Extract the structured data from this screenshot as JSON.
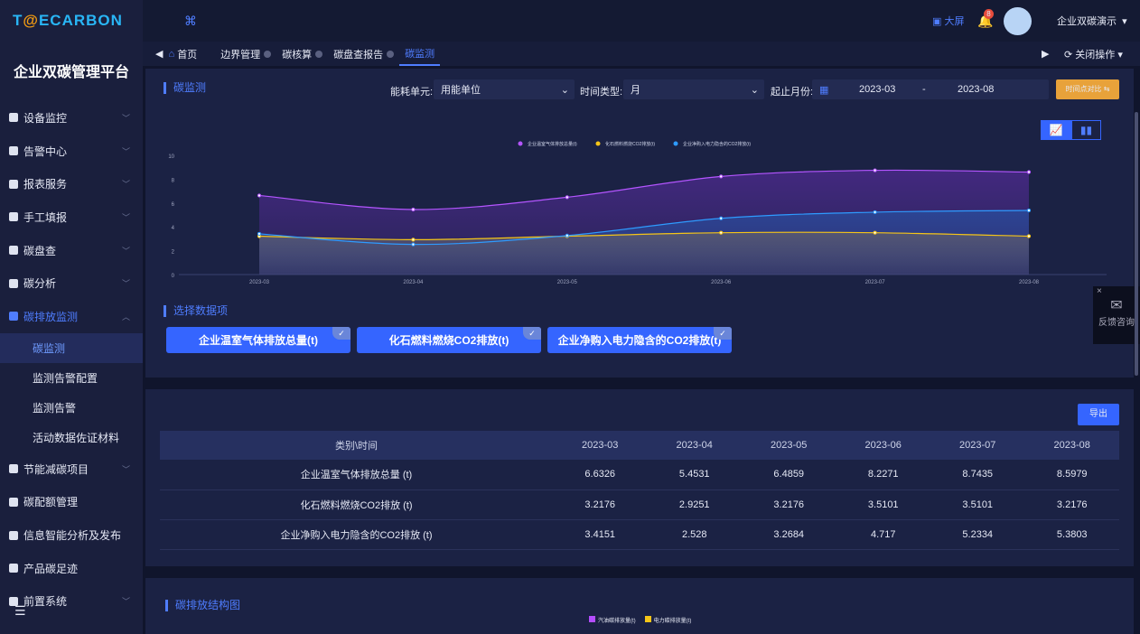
{
  "app": {
    "logo": "T@ECARBON",
    "platform_title": "企业双碳管理平台"
  },
  "sidebar": {
    "items": [
      {
        "label": "设备监控"
      },
      {
        "label": "告警中心"
      },
      {
        "label": "报表服务"
      },
      {
        "label": "手工填报"
      },
      {
        "label": "碳盘查"
      },
      {
        "label": "碳分析"
      },
      {
        "label": "碳排放监测",
        "active": true
      }
    ],
    "subitems": [
      {
        "label": "碳监测",
        "active": true
      },
      {
        "label": "监测告警配置"
      },
      {
        "label": "监测告警"
      },
      {
        "label": "活动数据佐证材料"
      }
    ],
    "items2": [
      {
        "label": "节能减碳项目"
      },
      {
        "label": "碳配额管理"
      },
      {
        "label": "信息智能分析及发布"
      },
      {
        "label": "产品碳足迹"
      },
      {
        "label": "前置系统"
      }
    ]
  },
  "header": {
    "bigscreen": "大屏",
    "badge": "8",
    "user": "企业双碳演示"
  },
  "tabs": {
    "home": "首页",
    "items": [
      "边界管理",
      "碳核算",
      "碳盘查报告",
      "碳监测"
    ],
    "active": "碳监测",
    "close_ops": "关闭操作"
  },
  "filters": {
    "section": "碳监测",
    "unit_label": "能耗单元:",
    "unit_value": "用能单位",
    "type_label": "时间类型:",
    "type_value": "月",
    "range_label": "起止月份:",
    "start": "2023-03",
    "sep": "-",
    "end": "2023-08",
    "compare_btn": "时间点对比"
  },
  "select_section": "选择数据项",
  "chips": [
    "企业温室气体排放总量(t)",
    "化石燃料燃烧CO2排放(t)",
    "企业净购入电力隐含的CO2排放(t)"
  ],
  "feedback": "反馈咨询",
  "export_btn": "导出",
  "table": {
    "headers": [
      "类别\\时间",
      "2023-03",
      "2023-04",
      "2023-05",
      "2023-06",
      "2023-07",
      "2023-08"
    ],
    "rows": [
      [
        "企业温室气体排放总量 (t)",
        "6.6326",
        "5.4531",
        "6.4859",
        "8.2271",
        "8.7435",
        "8.5979"
      ],
      [
        "化石燃料燃烧CO2排放 (t)",
        "3.2176",
        "2.9251",
        "3.2176",
        "3.5101",
        "3.5101",
        "3.2176"
      ],
      [
        "企业净购入电力隐含的CO2排放 (t)",
        "3.4151",
        "2.528",
        "3.2684",
        "4.717",
        "5.2334",
        "5.3803"
      ]
    ]
  },
  "structure": {
    "title": "碳排放结构图",
    "legend": [
      {
        "name": "汽油碳排放量(t)",
        "color": "#b44dff"
      },
      {
        "name": "电力碳排放量(t)",
        "color": "#f5c518"
      }
    ]
  },
  "chart_data": {
    "type": "area",
    "categories": [
      "2023-03",
      "2023-04",
      "2023-05",
      "2023-06",
      "2023-07",
      "2023-08"
    ],
    "ylim": [
      0,
      10
    ],
    "yticks": [
      "0",
      "2",
      "4",
      "6",
      "8",
      "10"
    ],
    "legend_position": "top",
    "series": [
      {
        "name": "企业温室气体排放总量(t)",
        "color": "#b455ff",
        "values": [
          6.6326,
          5.4531,
          6.4859,
          8.2271,
          8.7435,
          8.5979
        ]
      },
      {
        "name": "化石燃料燃烧CO2排放(t)",
        "color": "#f5c518",
        "values": [
          3.2176,
          2.9251,
          3.2176,
          3.5101,
          3.5101,
          3.2176
        ]
      },
      {
        "name": "企业净购入电力隐含的CO2排放(t)",
        "color": "#2e9bff",
        "values": [
          3.4151,
          2.528,
          3.2684,
          4.717,
          5.2334,
          5.3803
        ]
      }
    ]
  }
}
